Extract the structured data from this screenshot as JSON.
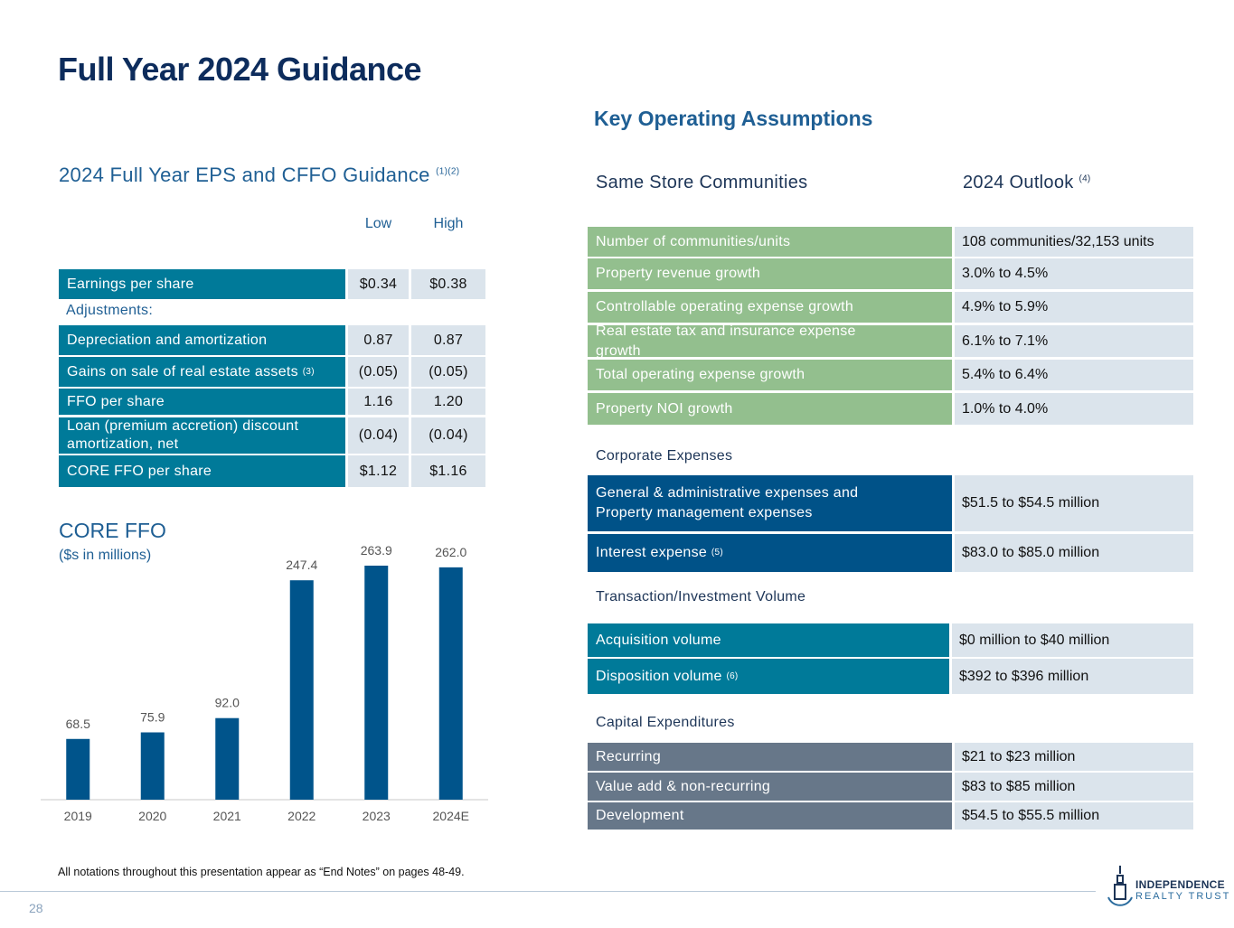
{
  "title": "Full Year 2024 Guidance",
  "eps_guidance": {
    "heading": "2024 Full Year EPS and CFFO Guidance",
    "heading_note": "(1)(2)",
    "columns": [
      "Low",
      "High"
    ],
    "adjustments_label": "Adjustments:",
    "rows": [
      {
        "label": "Earnings per share",
        "low": "$0.34",
        "high": "$0.38"
      },
      {
        "label": "Depreciation and amortization",
        "low": "0.87",
        "high": "0.87"
      },
      {
        "label": "Gains on sale of real estate assets",
        "note": "(3)",
        "low": "(0.05)",
        "high": "(0.05)"
      },
      {
        "label": "FFO per share",
        "low": "1.16",
        "high": "1.20"
      },
      {
        "label": "Loan (premium accretion) discount amortization, net",
        "low": "(0.04)",
        "high": "(0.04)"
      },
      {
        "label": "CORE FFO per share",
        "low": "$1.12",
        "high": "$1.16"
      }
    ]
  },
  "core_ffo": {
    "type": "bar",
    "title": "CORE FFO",
    "subtitle": "($s in millions)",
    "categories": [
      "2019",
      "2020",
      "2021",
      "2022",
      "2023",
      "2024E"
    ],
    "values": [
      68.5,
      75.9,
      92.0,
      247.4,
      263.9,
      262.0
    ],
    "value_labels": [
      "68.5",
      "75.9",
      "92.0",
      "247.4",
      "263.9",
      "262.0"
    ],
    "color": "#00548b"
  },
  "assumptions": {
    "title": "Key Operating Assumptions",
    "col1": "Same Store Communities",
    "col2": "2024 Outlook",
    "col2_note": "(4)",
    "sections": [
      {
        "rows": [
          {
            "label": "Number of communities/units",
            "value": "108 communities/32,153 units"
          },
          {
            "label": "Property revenue growth",
            "value": "3.0% to 4.5%"
          },
          {
            "label": "Controllable operating expense growth",
            "value": "4.9% to 5.9%"
          },
          {
            "label": "Real estate tax and insurance expense growth",
            "value": "6.1% to 7.1%"
          },
          {
            "label": "Total operating expense growth",
            "value": "5.4% to 6.4%"
          },
          {
            "label": "Property NOI growth",
            "value": "1.0% to 4.0%"
          }
        ]
      },
      {
        "heading": "Corporate Expenses",
        "rows": [
          {
            "label": "General & administrative expenses and Property management expenses",
            "value": "$51.5 to $54.5 million"
          },
          {
            "label": "Interest expense",
            "note": "(5)",
            "value": "$83.0 to $85.0 million"
          }
        ]
      },
      {
        "heading": "Transaction/Investment Volume",
        "rows": [
          {
            "label": "Acquisition volume",
            "value": "$0 million to $40 million"
          },
          {
            "label": "Disposition volume",
            "note": "(6)",
            "value": "$392 to $396 million"
          }
        ]
      },
      {
        "heading": "Capital Expenditures",
        "rows": [
          {
            "label": "Recurring",
            "value": "$21 to $23 million"
          },
          {
            "label": "Value add & non-recurring",
            "value": "$83 to $85 million"
          },
          {
            "label": "Development",
            "value": "$54.5 to $55.5 million"
          }
        ]
      }
    ]
  },
  "footnote": "All notations throughout this presentation appear as “End Notes” on pages 48-49.",
  "page_number": "28",
  "logo": {
    "line1": "INDEPENDENCE",
    "line2": "REALTY TRUST"
  }
}
